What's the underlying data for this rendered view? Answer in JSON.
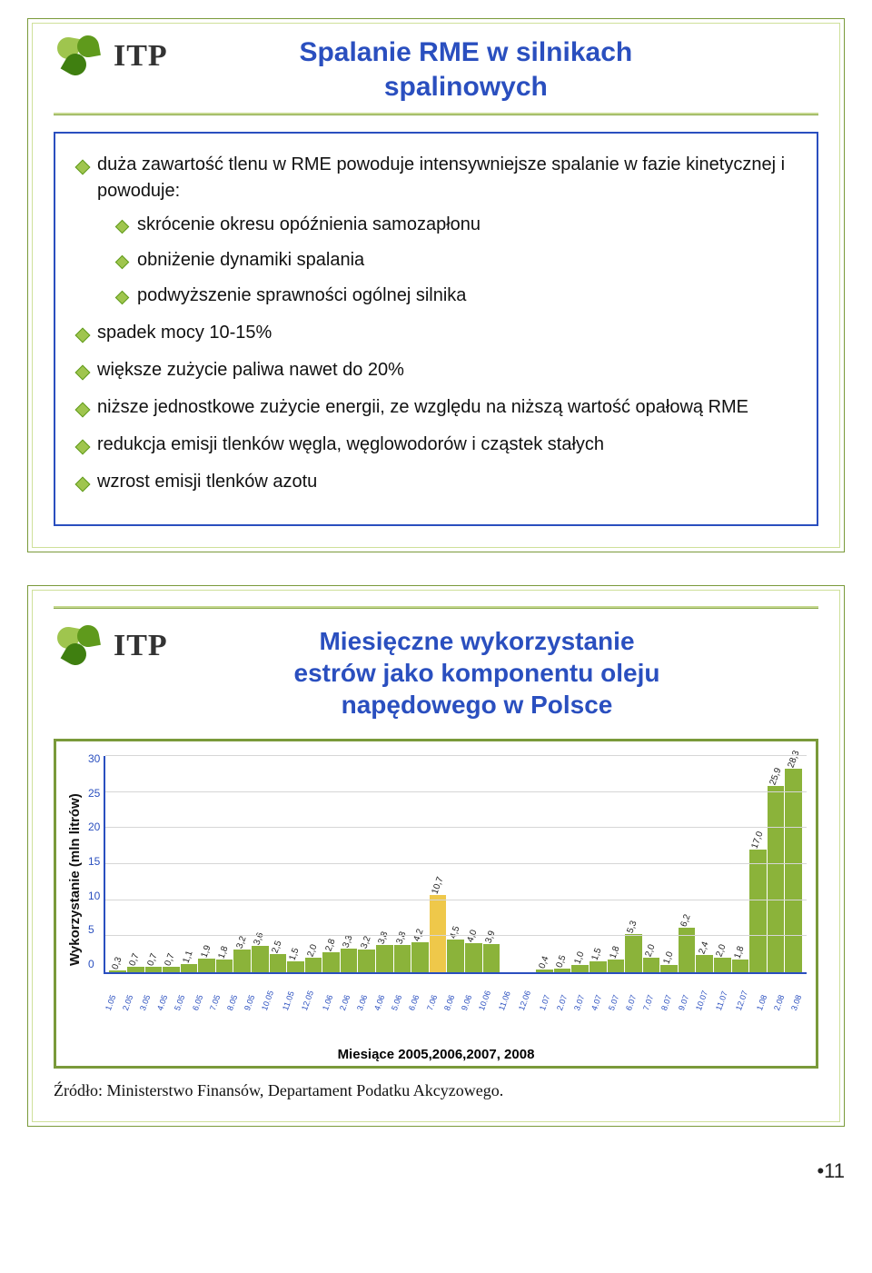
{
  "slide1": {
    "logo_text": "ITP",
    "title_line1": "Spalanie RME w silnikach",
    "title_line2": "spalinowych",
    "bullets": {
      "b1": "duża zawartość tlenu w RME powoduje intensywniejsze spalanie w fazie kinetycznej i powoduje:",
      "b1a": "skrócenie okresu opóźnienia samozapłonu",
      "b1b": "obniżenie dynamiki spalania",
      "b1c": "podwyższenie sprawności ogólnej silnika",
      "b2": "spadek mocy 10-15%",
      "b3": "większe zużycie paliwa nawet do 20%",
      "b4": "niższe jednostkowe zużycie energii, ze względu na niższą wartość opałową RME",
      "b5": "redukcja emisji tlenków węgla, węglowodorów i cząstek stałych",
      "b6": "wzrost emisji tlenków azotu"
    }
  },
  "slide2": {
    "logo_text": "ITP",
    "title_line1": "Miesięczne wykorzystanie",
    "title_line2": "estrów jako komponentu oleju",
    "title_line3": "napędowego w Polsce",
    "y_label": "Wykorzystanie (mln litrów)",
    "x_label": "Miesiące 2005,2006,2007, 2008",
    "source": "Źródło: Ministerstwo Finansów, Departament Podatku Akcyzowego.",
    "chart": {
      "type": "bar",
      "ymin": 0,
      "ymax": 30,
      "ytick_step": 5,
      "yticks": [
        "30",
        "25",
        "20",
        "15",
        "10",
        "5",
        "0"
      ],
      "bar_color": "#8bb33a",
      "highlight_color": "#efc84a",
      "highlight_index": 18,
      "grid_color": "#d6d6d6",
      "axis_color": "#2a4fbf",
      "background": "#ffffff",
      "categories": [
        "1.05",
        "2.05",
        "3.05",
        "4.05",
        "5.05",
        "6.05",
        "7.05",
        "8.05",
        "9.05",
        "10.05",
        "11.05",
        "12.05",
        "1.06",
        "2.06",
        "3.06",
        "4.06",
        "5.06",
        "6.06",
        "7.06",
        "8.06",
        "9.06",
        "10.06",
        "11.06",
        "12.06",
        "1.07",
        "2.07",
        "3.07",
        "4.07",
        "5.07",
        "6.07",
        "7.07",
        "8.07",
        "9.07",
        "10.07",
        "11.07",
        "12.07",
        "1.08",
        "2.08",
        "3.08"
      ],
      "values": [
        0.3,
        0.7,
        0.7,
        0.7,
        1.1,
        1.9,
        1.8,
        3.2,
        3.6,
        2.5,
        1.5,
        2.0,
        2.8,
        3.3,
        3.2,
        3.8,
        3.8,
        4.2,
        10.7,
        4.5,
        4.0,
        3.9,
        0.0,
        0.0,
        0.4,
        0.5,
        1.0,
        1.5,
        1.8,
        5.3,
        2.0,
        1.0,
        6.2,
        2.4,
        2.0,
        1.8,
        17.0,
        25.9,
        28.3
      ],
      "value_labels": [
        "0,3",
        "0,7",
        "0,7",
        "0,7",
        "1,1",
        "1,9",
        "1,8",
        "3,2",
        "3,6",
        "2,5",
        "1,5",
        "2,0",
        "2,8",
        "3,3",
        "3,2",
        "3,8",
        "3,8",
        "4,2",
        "10,7",
        "4,5",
        "4,0",
        "3,9",
        "",
        "",
        "0,4",
        "0,5",
        "1,0",
        "1,5",
        "1,8",
        "5,3",
        "2,0",
        "1,0",
        "6,2",
        "2,4",
        "2,0",
        "1,8",
        "17,0",
        "25,9",
        "28,3"
      ]
    }
  },
  "page_number": "11"
}
